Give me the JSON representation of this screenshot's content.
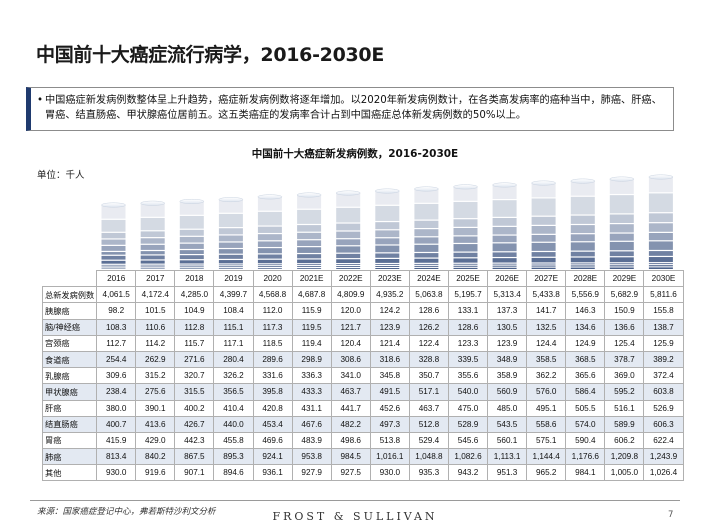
{
  "title": "中国前十大癌症流行病学，2016-2030E",
  "summary": {
    "bullet": "•",
    "text": "中国癌症新发病例数整体呈上升趋势，癌症新发病例数将逐年增加。以2020年新发病例数计，在各类高发病率的癌种当中，肺癌、肝癌、胃癌、结直肠癌、甲状腺癌位居前五。这五类癌症的发病率合计占到中国癌症总体新发病例数的50%以上。"
  },
  "source": "来源：国家癌症登记中心，弗若斯特沙利文分析",
  "brand": "FROST & SULLIVAN",
  "page_number": "7",
  "colors": {
    "bar_dark": "#1f3a6e",
    "bar_light": "#ffffff",
    "accent": "#1f3a6e"
  },
  "chart_data": {
    "type": "bar",
    "stacked": true,
    "title": "中国前十大癌症新发病例数，2016-2030E",
    "unit": "单位：千人",
    "categories": [
      "2016",
      "2017",
      "2018",
      "2019",
      "2020",
      "2021E",
      "2022E",
      "2023E",
      "2024E",
      "2025E",
      "2026E",
      "2027E",
      "2028E",
      "2029E",
      "2030E"
    ],
    "total": {
      "name": "总新发病例数",
      "labels": [
        "4,061.5",
        "4,172.4",
        "4,285.0",
        "4,399.7",
        "4,568.8",
        "4,687.8",
        "4,809.9",
        "4,935.2",
        "5,063.8",
        "5,195.7",
        "5,313.4",
        "5,433.8",
        "5,556.9",
        "5,682.9",
        "5,811.6"
      ],
      "values": [
        4061.5,
        4172.4,
        4285.0,
        4399.7,
        4568.8,
        4687.8,
        4809.9,
        4935.2,
        5063.8,
        5195.7,
        5313.4,
        5433.8,
        5556.9,
        5682.9,
        5811.6
      ]
    },
    "series": [
      {
        "name": "胰腺癌",
        "labels": [
          "98.2",
          "101.5",
          "104.9",
          "108.4",
          "112.0",
          "115.9",
          "120.0",
          "124.2",
          "128.6",
          "133.1",
          "137.3",
          "141.7",
          "146.3",
          "150.9",
          "155.8"
        ],
        "values": [
          98.2,
          101.5,
          104.9,
          108.4,
          112.0,
          115.9,
          120.0,
          124.2,
          128.6,
          133.1,
          137.3,
          141.7,
          146.3,
          150.9,
          155.8
        ]
      },
      {
        "name": "脑/神经癌",
        "labels": [
          "108.3",
          "110.6",
          "112.8",
          "115.1",
          "117.3",
          "119.5",
          "121.7",
          "123.9",
          "126.2",
          "128.6",
          "130.5",
          "132.5",
          "134.6",
          "136.6",
          "138.7"
        ],
        "values": [
          108.3,
          110.6,
          112.8,
          115.1,
          117.3,
          119.5,
          121.7,
          123.9,
          126.2,
          128.6,
          130.5,
          132.5,
          134.6,
          136.6,
          138.7
        ]
      },
      {
        "name": "宫颈癌",
        "labels": [
          "112.7",
          "114.2",
          "115.7",
          "117.1",
          "118.5",
          "119.4",
          "120.4",
          "121.4",
          "122.4",
          "123.3",
          "123.9",
          "124.4",
          "124.9",
          "125.4",
          "125.9"
        ],
        "values": [
          112.7,
          114.2,
          115.7,
          117.1,
          118.5,
          119.4,
          120.4,
          121.4,
          122.4,
          123.3,
          123.9,
          124.4,
          124.9,
          125.4,
          125.9
        ]
      },
      {
        "name": "食道癌",
        "labels": [
          "254.4",
          "262.9",
          "271.6",
          "280.4",
          "289.6",
          "298.9",
          "308.6",
          "318.6",
          "328.8",
          "339.5",
          "348.9",
          "358.5",
          "368.5",
          "378.7",
          "389.2"
        ],
        "values": [
          254.4,
          262.9,
          271.6,
          280.4,
          289.6,
          298.9,
          308.6,
          318.6,
          328.8,
          339.5,
          348.9,
          358.5,
          368.5,
          378.7,
          389.2
        ]
      },
      {
        "name": "乳腺癌",
        "labels": [
          "309.6",
          "315.2",
          "320.7",
          "326.2",
          "331.6",
          "336.3",
          "341.0",
          "345.8",
          "350.7",
          "355.6",
          "358.9",
          "362.2",
          "365.6",
          "369.0",
          "372.4"
        ],
        "values": [
          309.6,
          315.2,
          320.7,
          326.2,
          331.6,
          336.3,
          341.0,
          345.8,
          350.7,
          355.6,
          358.9,
          362.2,
          365.6,
          369.0,
          372.4
        ]
      },
      {
        "name": "甲状腺癌",
        "labels": [
          "238.4",
          "275.6",
          "315.5",
          "356.5",
          "395.8",
          "433.3",
          "463.7",
          "491.5",
          "517.1",
          "540.0",
          "560.9",
          "576.0",
          "586.4",
          "595.2",
          "603.8"
        ],
        "values": [
          238.4,
          275.6,
          315.5,
          356.5,
          395.8,
          433.3,
          463.7,
          491.5,
          517.1,
          540.0,
          560.9,
          576.0,
          586.4,
          595.2,
          603.8
        ]
      },
      {
        "name": "肝癌",
        "labels": [
          "380.0",
          "390.1",
          "400.2",
          "410.4",
          "420.8",
          "431.1",
          "441.7",
          "452.6",
          "463.7",
          "475.0",
          "485.0",
          "495.1",
          "505.5",
          "516.1",
          "526.9"
        ],
        "values": [
          380.0,
          390.1,
          400.2,
          410.4,
          420.8,
          431.1,
          441.7,
          452.6,
          463.7,
          475.0,
          485.0,
          495.1,
          505.5,
          516.1,
          526.9
        ]
      },
      {
        "name": "结直肠癌",
        "labels": [
          "400.7",
          "413.6",
          "426.7",
          "440.0",
          "453.4",
          "467.6",
          "482.2",
          "497.3",
          "512.8",
          "528.9",
          "543.5",
          "558.6",
          "574.0",
          "589.9",
          "606.3"
        ],
        "values": [
          400.7,
          413.6,
          426.7,
          440.0,
          453.4,
          467.6,
          482.2,
          497.3,
          512.8,
          528.9,
          543.5,
          558.6,
          574.0,
          589.9,
          606.3
        ]
      },
      {
        "name": "胃癌",
        "labels": [
          "415.9",
          "429.0",
          "442.3",
          "455.8",
          "469.6",
          "483.9",
          "498.6",
          "513.8",
          "529.4",
          "545.6",
          "560.1",
          "575.1",
          "590.4",
          "606.2",
          "622.4"
        ],
        "values": [
          415.9,
          429.0,
          442.3,
          455.8,
          469.6,
          483.9,
          498.6,
          513.8,
          529.4,
          545.6,
          560.1,
          575.1,
          590.4,
          606.2,
          622.4
        ]
      },
      {
        "name": "肺癌",
        "labels": [
          "813.4",
          "840.2",
          "867.5",
          "895.3",
          "924.1",
          "953.8",
          "984.5",
          "1,016.1",
          "1,048.8",
          "1,082.6",
          "1,113.1",
          "1,144.4",
          "1,176.6",
          "1,209.8",
          "1,243.9"
        ],
        "values": [
          813.4,
          840.2,
          867.5,
          895.3,
          924.1,
          953.8,
          984.5,
          1016.1,
          1048.8,
          1082.6,
          1113.1,
          1144.4,
          1176.6,
          1209.8,
          1243.9
        ]
      },
      {
        "name": "其他",
        "labels": [
          "930.0",
          "919.6",
          "907.1",
          "894.6",
          "936.1",
          "927.9",
          "927.5",
          "930.0",
          "935.3",
          "943.2",
          "951.3",
          "965.2",
          "984.1",
          "1,005.0",
          "1,026.4"
        ],
        "values": [
          930.0,
          919.6,
          907.1,
          894.6,
          936.1,
          927.9,
          927.5,
          930.0,
          935.3,
          943.2,
          951.3,
          965.2,
          984.1,
          1005.0,
          1026.4
        ]
      }
    ]
  }
}
